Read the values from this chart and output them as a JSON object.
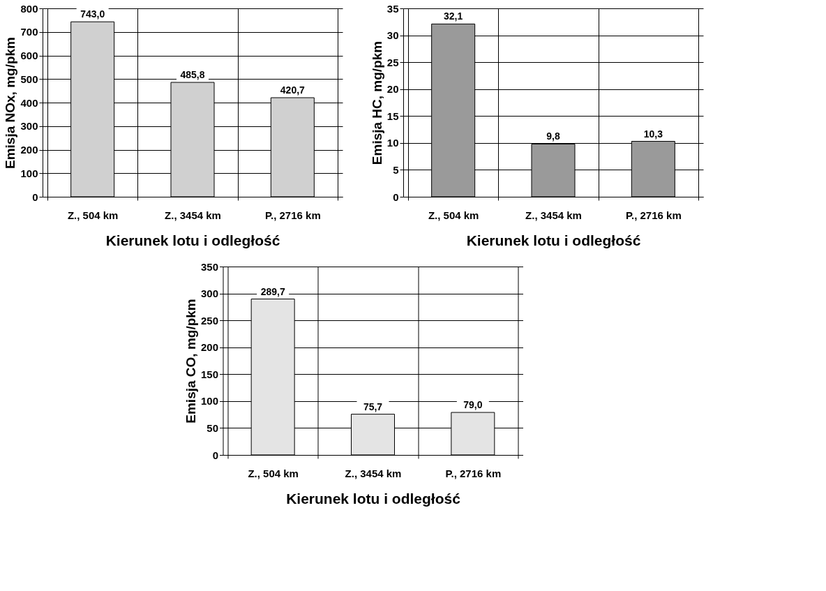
{
  "chart_data": [
    {
      "type": "bar",
      "ylabel": "Emisja NOx, mg/pkm",
      "xlabel": "Kierunek lotu i odległość",
      "categories": [
        "Z., 504 km",
        "Z., 3454 km",
        "P., 2716 km"
      ],
      "values": [
        743.0,
        485.8,
        420.7
      ],
      "value_labels": [
        "743,0",
        "485,8",
        "420,7"
      ],
      "color": "#d0d0d0",
      "ylim": [
        0,
        800
      ],
      "yticks": [
        0,
        100,
        200,
        300,
        400,
        500,
        600,
        700,
        800
      ],
      "grid": true
    },
    {
      "type": "bar",
      "ylabel": "Emisja HC, mg/pkm",
      "xlabel": "Kierunek lotu i odległość",
      "categories": [
        "Z., 504 km",
        "Z., 3454 km",
        "P., 2716 km"
      ],
      "values": [
        32.1,
        9.8,
        10.3
      ],
      "value_labels": [
        "32,1",
        "9,8",
        "10,3"
      ],
      "color": "#9a9a9a",
      "ylim": [
        0,
        35
      ],
      "yticks": [
        0,
        5,
        10,
        15,
        20,
        25,
        30,
        35
      ],
      "grid": true
    },
    {
      "type": "bar",
      "ylabel": "Emisja CO, mg/pkm",
      "xlabel": "Kierunek lotu i odległość",
      "categories": [
        "Z., 504 km",
        "Z., 3454 km",
        "P., 2716 km"
      ],
      "values": [
        289.7,
        75.7,
        79.0
      ],
      "value_labels": [
        "289,7",
        "75,7",
        "79,0"
      ],
      "color": "#e4e4e4",
      "ylim": [
        0,
        350
      ],
      "yticks": [
        0,
        50,
        100,
        150,
        200,
        250,
        300,
        350
      ],
      "grid": true
    }
  ]
}
